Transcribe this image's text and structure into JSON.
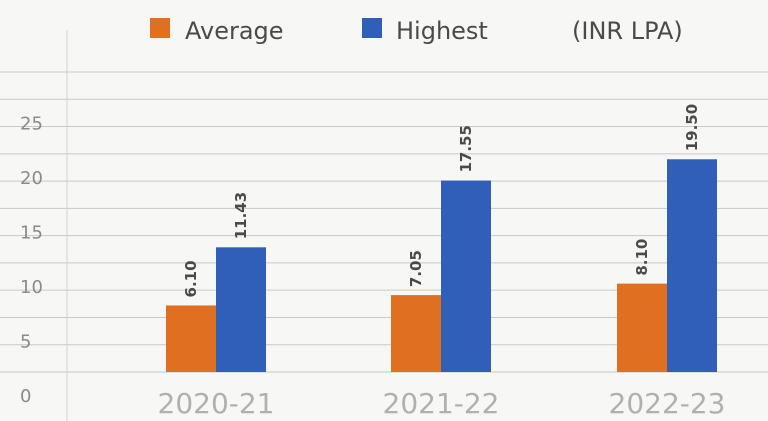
{
  "legend": {
    "unit": "(INR LPA)",
    "series_labels": [
      "Average",
      "Highest"
    ]
  },
  "colors": {
    "average": "#e0701f",
    "highest": "#2f5fb8",
    "grid": "#c9c9c9",
    "axis": "#d0d0d0"
  },
  "chart_data": {
    "type": "bar",
    "categories": [
      "2020-21",
      "2021-22",
      "2022-23"
    ],
    "series": [
      {
        "name": "Average",
        "values": [
          6.1,
          7.05,
          8.1
        ],
        "labels": [
          "6.10",
          "7.05",
          "8.10"
        ]
      },
      {
        "name": "Highest",
        "values": [
          11.43,
          17.55,
          19.5
        ],
        "labels": [
          "11.43",
          "17.55",
          "19.50"
        ]
      }
    ],
    "yticks": [
      "0",
      "5",
      "10",
      "15",
      "20",
      "25"
    ],
    "ylim": [
      0,
      27.5
    ],
    "grid": true,
    "legend_position": "top"
  }
}
